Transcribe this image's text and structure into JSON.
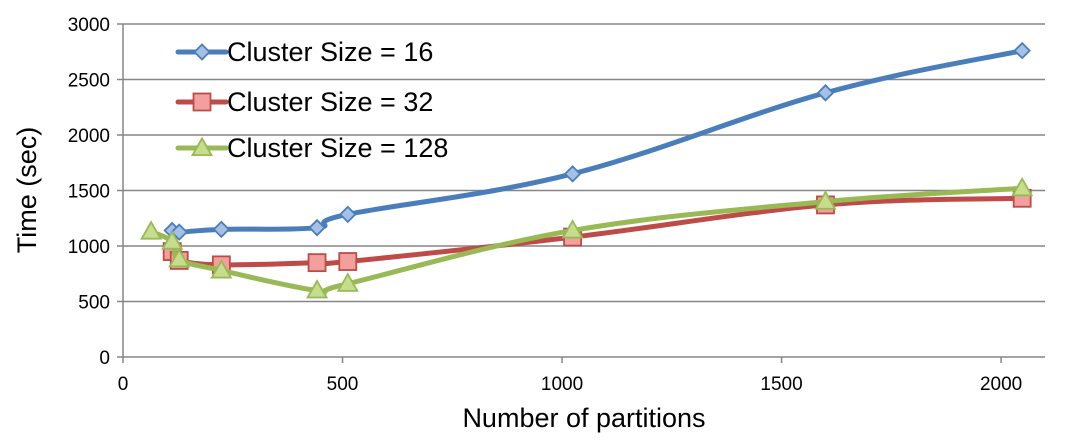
{
  "chart_data": {
    "type": "line",
    "xlabel": "Number of partitions",
    "ylabel": "Time (sec)",
    "xlim": [
      0,
      2100
    ],
    "ylim": [
      0,
      3000
    ],
    "xticks": [
      0,
      500,
      1000,
      1500,
      2000
    ],
    "yticks": [
      0,
      500,
      1000,
      1500,
      2000,
      2500,
      3000
    ],
    "grid": "horizontal",
    "legend_position": "top-left",
    "series": [
      {
        "name": "Cluster Size = 16",
        "color": "#4a7ebb",
        "marker": "diamond",
        "x": [
          112,
          128,
          224,
          442,
          512,
          1024,
          1600,
          2048
        ],
        "y": [
          1140,
          1125,
          1150,
          1165,
          1285,
          1650,
          2380,
          2760
        ]
      },
      {
        "name": "Cluster Size = 32",
        "color": "#be4b48",
        "marker": "square",
        "x": [
          112,
          128,
          224,
          442,
          512,
          1024,
          1600,
          2048
        ],
        "y": [
          950,
          870,
          830,
          850,
          860,
          1080,
          1370,
          1430
        ]
      },
      {
        "name": "Cluster Size = 128",
        "color": "#98b954",
        "marker": "triangle",
        "x": [
          64,
          112,
          128,
          224,
          442,
          512,
          1024,
          1600,
          2048
        ],
        "y": [
          1130,
          1040,
          880,
          780,
          600,
          660,
          1140,
          1400,
          1520
        ]
      }
    ]
  }
}
